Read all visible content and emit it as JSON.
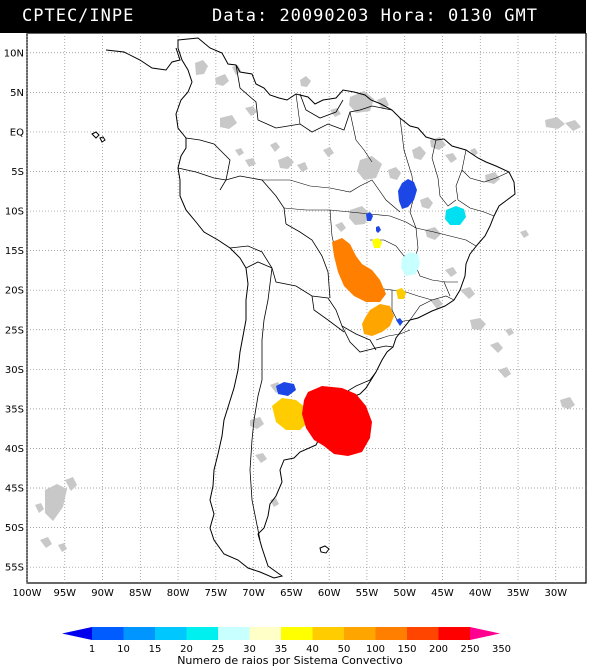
{
  "header": {
    "org": "CPTEC/INPE",
    "data_label": "Data:",
    "date": "20090203",
    "hora_label": "Hora:",
    "time": "0130",
    "tz": "GMT"
  },
  "map": {
    "lat_labels": [
      "10N",
      "5N",
      "EQ",
      "5S",
      "10S",
      "15S",
      "20S",
      "25S",
      "30S",
      "35S",
      "40S",
      "45S",
      "50S",
      "55S"
    ],
    "lon_labels": [
      "100W",
      "95W",
      "90W",
      "85W",
      "80W",
      "75W",
      "70W",
      "65W",
      "60W",
      "55W",
      "50W",
      "45W",
      "40W",
      "35W",
      "30W"
    ],
    "lon_range": [
      -100,
      -26
    ],
    "lat_range": [
      -57,
      12.5
    ]
  },
  "colorbar": {
    "title": "Numero de raios por Sistema Convectivo",
    "tick_labels": [
      "1",
      "10",
      "15",
      "20",
      "25",
      "30",
      "35",
      "40",
      "50",
      "100",
      "150",
      "200",
      "250",
      "350"
    ],
    "colors": [
      "#0000ee",
      "#005cff",
      "#0095ff",
      "#00c8ff",
      "#00f0f0",
      "#c8ffff",
      "#ffffc8",
      "#ffff00",
      "#ffcc00",
      "#ffa500",
      "#ff7f00",
      "#ff4500",
      "#ff0000",
      "#ff0090"
    ]
  },
  "systems": [
    {
      "name": "southeast-amazon",
      "color": "#1c47e6"
    },
    {
      "name": "northeast-bahia",
      "color": "#00e0f0"
    },
    {
      "name": "goias-small-blue",
      "color": "#1c47e6"
    },
    {
      "name": "goias-yellow",
      "color": "#ffff00"
    },
    {
      "name": "minas-lightcyan",
      "color": "#c8ffff"
    },
    {
      "name": "mato-grosso",
      "color": "#ff7f00"
    },
    {
      "name": "mato-grosso-sul-yellow",
      "color": "#ffcc00"
    },
    {
      "name": "parana-orange",
      "color": "#ffa500"
    },
    {
      "name": "pampa-blue",
      "color": "#1c47e6"
    },
    {
      "name": "pampa-yellow",
      "color": "#ffcc00"
    },
    {
      "name": "uruguay-red",
      "color": "#ff0000"
    }
  ]
}
